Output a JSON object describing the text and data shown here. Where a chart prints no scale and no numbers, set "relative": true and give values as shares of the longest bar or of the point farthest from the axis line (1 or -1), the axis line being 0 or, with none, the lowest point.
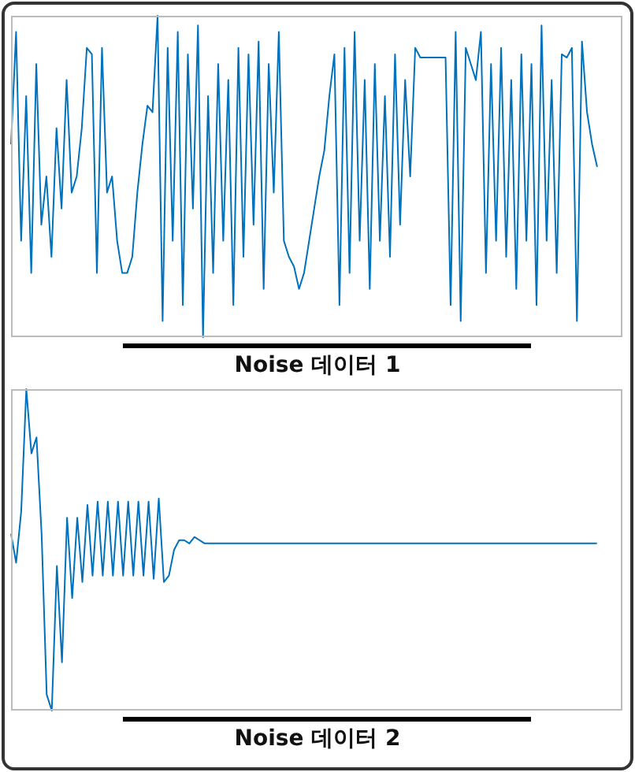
{
  "chart_data": [
    {
      "type": "line",
      "relative": true,
      "xlabel": "Noise 데이터 1",
      "color": "#0072bd",
      "categories": [
        null,
        null,
        null,
        null,
        null,
        null,
        null,
        null,
        null,
        null,
        null,
        null,
        null,
        null,
        null,
        null,
        null,
        null,
        null,
        null,
        null,
        null,
        null,
        null,
        null,
        null,
        null,
        null,
        null,
        null,
        null,
        null,
        null,
        null,
        null,
        null,
        null,
        null,
        null,
        null,
        null,
        null,
        null,
        null,
        null,
        null,
        null,
        null,
        null,
        null,
        null,
        null,
        null,
        null,
        null,
        null,
        null,
        null,
        null,
        null,
        null,
        null,
        null,
        null,
        null,
        null,
        null,
        null,
        null,
        null,
        null,
        null,
        null,
        null,
        null,
        null,
        null,
        null,
        null,
        null,
        null,
        null,
        null,
        null,
        null,
        null,
        null,
        null,
        null,
        null,
        null,
        null,
        null,
        null,
        null,
        null,
        null,
        null,
        null,
        null,
        null,
        null,
        null,
        null,
        null,
        null,
        null,
        null,
        null,
        null,
        null,
        null,
        null,
        null,
        null,
        null,
        null,
        null,
        null,
        null,
        null,
        null
      ],
      "values": [
        0.6,
        0.95,
        0.3,
        0.75,
        0.2,
        0.85,
        0.35,
        0.5,
        0.25,
        0.65,
        0.4,
        0.8,
        0.45,
        0.5,
        0.65,
        0.9,
        0.88,
        0.2,
        0.9,
        0.45,
        0.5,
        0.3,
        0.2,
        0.2,
        0.25,
        0.45,
        0.6,
        0.72,
        0.7,
        1.0,
        0.05,
        0.9,
        0.3,
        0.95,
        0.1,
        0.88,
        0.4,
        0.97,
        0.0,
        0.75,
        0.2,
        0.85,
        0.3,
        0.8,
        0.1,
        0.9,
        0.25,
        0.88,
        0.35,
        0.92,
        0.15,
        0.85,
        0.45,
        0.95,
        0.3,
        0.25,
        0.22,
        0.15,
        0.2,
        0.3,
        0.4,
        0.5,
        0.58,
        0.75,
        0.88,
        0.1,
        0.9,
        0.2,
        0.95,
        0.3,
        0.8,
        0.15,
        0.85,
        0.3,
        0.75,
        0.25,
        0.88,
        0.35,
        0.8,
        0.5,
        0.9,
        0.87,
        0.87,
        0.87,
        0.87,
        0.87,
        0.87,
        0.1,
        0.95,
        0.05,
        0.9,
        0.85,
        0.8,
        0.95,
        0.2,
        0.85,
        0.3,
        0.9,
        0.25,
        0.8,
        0.15,
        0.88,
        0.3,
        0.85,
        0.1,
        0.97,
        0.3,
        0.8,
        0.2,
        0.88,
        0.87,
        0.9,
        0.05,
        0.92,
        0.7,
        0.6,
        0.53,
        null,
        null,
        null,
        null,
        null
      ]
    },
    {
      "type": "line",
      "relative": true,
      "xlabel": "Noise 데이터 2",
      "color": "#0072bd",
      "categories": [
        null,
        null,
        null,
        null,
        null,
        null,
        null,
        null,
        null,
        null,
        null,
        null,
        null,
        null,
        null,
        null,
        null,
        null,
        null,
        null,
        null,
        null,
        null,
        null,
        null,
        null,
        null,
        null,
        null,
        null,
        null,
        null,
        null,
        null,
        null,
        null,
        null,
        null,
        null,
        null,
        null,
        null,
        null,
        null,
        null,
        null,
        null,
        null,
        null,
        null,
        null,
        null,
        null,
        null,
        null,
        null,
        null,
        null,
        null,
        null,
        null,
        null,
        null,
        null,
        null,
        null,
        null,
        null,
        null,
        null,
        null,
        null,
        null,
        null,
        null,
        null,
        null,
        null,
        null,
        null,
        null,
        null,
        null,
        null,
        null,
        null,
        null,
        null,
        null,
        null,
        null,
        null,
        null,
        null,
        null,
        null,
        null,
        null,
        null,
        null,
        null,
        null,
        null,
        null,
        null,
        null,
        null,
        null,
        null,
        null,
        null,
        null,
        null,
        null,
        null,
        null,
        null,
        null,
        null,
        null,
        null
      ],
      "values": [
        0.55,
        0.46,
        0.62,
        1.0,
        0.8,
        0.85,
        0.55,
        0.05,
        0.0,
        0.45,
        0.15,
        0.6,
        0.35,
        0.6,
        0.4,
        0.64,
        0.42,
        0.65,
        0.42,
        0.65,
        0.42,
        0.65,
        0.42,
        0.65,
        0.42,
        0.65,
        0.42,
        0.65,
        0.41,
        0.66,
        0.4,
        0.42,
        0.5,
        0.53,
        0.53,
        0.52,
        0.54,
        0.53,
        0.52,
        0.52,
        0.52,
        0.52,
        0.52,
        0.52,
        0.52,
        0.52,
        0.52,
        0.52,
        0.52,
        0.52,
        0.52,
        0.52,
        0.52,
        0.52,
        0.52,
        0.52,
        0.52,
        0.52,
        0.52,
        0.52,
        0.52,
        0.52,
        0.52,
        0.52,
        0.52,
        0.52,
        0.52,
        0.52,
        0.52,
        0.52,
        0.52,
        0.52,
        0.52,
        0.52,
        0.52,
        0.52,
        0.52,
        0.52,
        0.52,
        0.52,
        0.52,
        0.52,
        0.52,
        0.52,
        0.52,
        0.52,
        0.52,
        0.52,
        0.52,
        0.52,
        0.52,
        0.52,
        0.52,
        0.52,
        0.52,
        0.52,
        0.52,
        0.52,
        0.52,
        0.52,
        0.52,
        0.52,
        0.52,
        0.52,
        0.52,
        0.52,
        0.52,
        0.52,
        0.52,
        0.52,
        0.52,
        0.52,
        0.52,
        0.52,
        0.52,
        0.52,
        null,
        null,
        null,
        null,
        null
      ]
    }
  ]
}
